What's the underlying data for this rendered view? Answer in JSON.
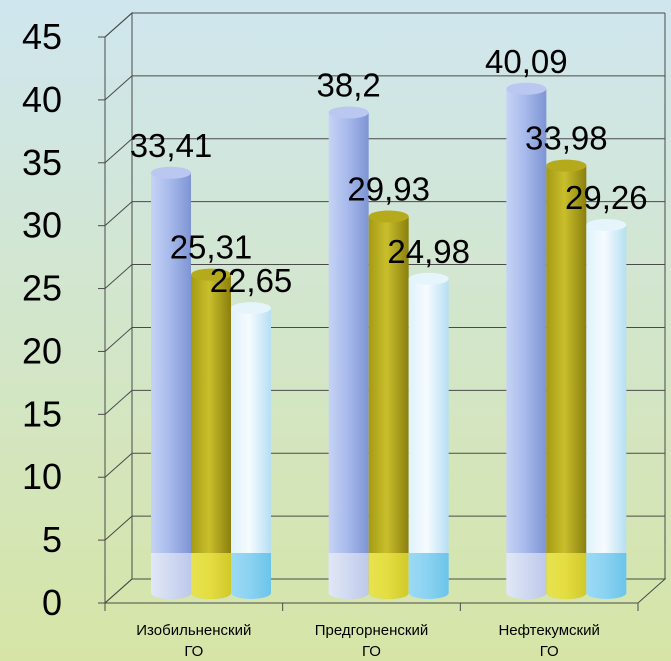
{
  "chart_data": {
    "type": "bar",
    "categories": [
      "Изобильненский ГО",
      "Предгорненский ГО",
      "Нефтекумский ГО"
    ],
    "category_lines": [
      [
        "Изобильненский",
        "ГО"
      ],
      [
        "Предгорненский",
        "ГО"
      ],
      [
        "Нефтекумский",
        "ГО"
      ]
    ],
    "series": [
      {
        "values": [
          33.41,
          38.2,
          40.09
        ],
        "labels": [
          "33,41",
          "38,2",
          "40,09"
        ],
        "color": "#9fb2e8"
      },
      {
        "values": [
          25.31,
          29.93,
          33.98
        ],
        "labels": [
          "25,31",
          "29,93",
          "33,98"
        ],
        "color": "#c9c128"
      },
      {
        "values": [
          22.65,
          24.98,
          29.26
        ],
        "labels": [
          "22,65",
          "24,98",
          "29,26"
        ],
        "color": "#9fd8f2"
      }
    ],
    "y_ticks": [
      "0",
      "5",
      "10",
      "15",
      "20",
      "25",
      "30",
      "35",
      "40",
      "45"
    ],
    "ylim": [
      0,
      45
    ],
    "grid": true,
    "title": "",
    "xlabel": "",
    "ylabel": ""
  }
}
